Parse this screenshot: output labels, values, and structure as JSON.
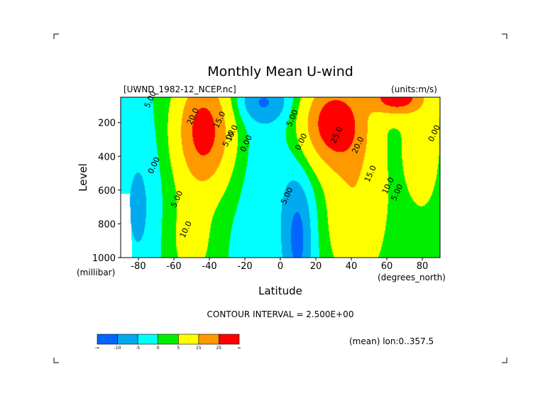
{
  "chart_data": {
    "type": "heatmap",
    "subtype": "filled-contour",
    "title": "Monthly Mean U-wind",
    "dataset_label": "[UWND_1982-12_NCEP.nc]",
    "units_label": "(units:m/s)",
    "xlabel": "Latitude",
    "x_units": "(degrees_north)",
    "ylabel": "Level",
    "y_units": "(millibar)",
    "xlim": [
      -90,
      90
    ],
    "ylim": [
      1000,
      50
    ],
    "x_ticks": [
      -80,
      -60,
      -40,
      -20,
      0,
      20,
      40,
      60,
      80
    ],
    "y_ticks": [
      200,
      400,
      600,
      800,
      1000
    ],
    "contour_interval_text": "CONTOUR INTERVAL = 2.500E+00",
    "mean_label": "(mean) lon:0..357.5",
    "contour_labels": [
      {
        "text": "5.00",
        "lat": -72,
        "lev": 70
      },
      {
        "text": "20.0",
        "lat": -48,
        "lev": 170
      },
      {
        "text": "15.0",
        "lat": -33,
        "lev": 190
      },
      {
        "text": "10.0",
        "lat": -26,
        "lev": 270
      },
      {
        "text": "5.00",
        "lat": -28,
        "lev": 300
      },
      {
        "text": "0.00",
        "lat": -18,
        "lev": 330
      },
      {
        "text": "0.00",
        "lat": -70,
        "lev": 460
      },
      {
        "text": "5.00",
        "lat": -57,
        "lev": 660
      },
      {
        "text": "10.0",
        "lat": -52,
        "lev": 840
      },
      {
        "text": "5.00",
        "lat": 8,
        "lev": 180
      },
      {
        "text": "0.00",
        "lat": 13,
        "lev": 320
      },
      {
        "text": "5.00",
        "lat": 5,
        "lev": 640
      },
      {
        "text": "25.0",
        "lat": 33,
        "lev": 280
      },
      {
        "text": "20.0",
        "lat": 45,
        "lev": 340
      },
      {
        "text": "15.0",
        "lat": 52,
        "lev": 510
      },
      {
        "text": "10.0",
        "lat": 62,
        "lev": 580
      },
      {
        "text": "5.00",
        "lat": 67,
        "lev": 620
      },
      {
        "text": "0.00",
        "lat": 88,
        "lev": 270
      }
    ],
    "colorbar": {
      "colors": [
        "#0066ff",
        "#00aaee",
        "#00ffff",
        "#00ee00",
        "#ffff00",
        "#ff9900",
        "#ff0000"
      ],
      "tick_labels": [
        "-∞",
        "-10",
        "-5",
        "0",
        "5",
        "15",
        "25",
        "∞"
      ]
    },
    "field": {
      "bands": [
        -10,
        -5,
        0,
        5,
        15,
        25
      ],
      "southern_jet": {
        "lat": -43,
        "lev": 250,
        "max": 30
      },
      "northern_jet": {
        "lat": 30,
        "lev": 200,
        "max": 32
      },
      "strat_jet_north": {
        "lat": 65,
        "lev": 50,
        "max": 30
      },
      "tropical_easterly": {
        "lat": 10,
        "lev": 900,
        "min": -10
      }
    }
  }
}
